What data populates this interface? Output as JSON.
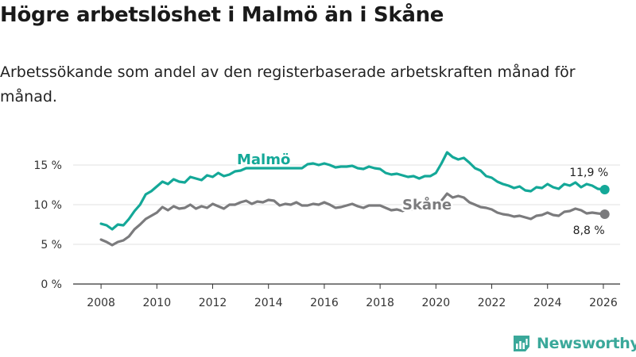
{
  "title": "Högre arbetslöshet i Malmö än i Skåne",
  "subtitle": "Arbetssökande som andel av den registerbaserade arbetskraften månad för månad.",
  "brand": "Newsworthy",
  "colors": {
    "malmo": "#14a898",
    "skane": "#7b7b7d",
    "grid": "#e2e2e2",
    "axis": "#333333"
  },
  "chart_data": {
    "type": "line",
    "title": "Högre arbetslöshet i Malmö än i Skåne",
    "xlabel": "",
    "ylabel": "",
    "xlim": [
      2007.0,
      2026.6
    ],
    "ylim": [
      0,
      16.8
    ],
    "y_ticks": [
      {
        "value": 0,
        "label": "0 %"
      },
      {
        "value": 5,
        "label": "5 %"
      },
      {
        "value": 10,
        "label": "10 %"
      },
      {
        "value": 15,
        "label": "15 %"
      }
    ],
    "x_ticks": [
      {
        "value": 2008,
        "label": "2008"
      },
      {
        "value": 2010,
        "label": "2010"
      },
      {
        "value": 2012,
        "label": "2012"
      },
      {
        "value": 2014,
        "label": "2014"
      },
      {
        "value": 2016,
        "label": "2016"
      },
      {
        "value": 2018,
        "label": "2018"
      },
      {
        "value": 2020,
        "label": "2020"
      },
      {
        "value": 2022,
        "label": "2022"
      },
      {
        "value": 2024,
        "label": "2024"
      },
      {
        "value": 2026,
        "label": "2026"
      }
    ],
    "series": [
      {
        "name": "Malmö",
        "label": "Malmö",
        "color": "#14a898",
        "end_label": "11,9 %",
        "points": [
          [
            2008.0,
            7.6
          ],
          [
            2008.2,
            7.4
          ],
          [
            2008.4,
            6.9
          ],
          [
            2008.6,
            7.5
          ],
          [
            2008.8,
            7.4
          ],
          [
            2009.0,
            8.2
          ],
          [
            2009.2,
            9.2
          ],
          [
            2009.4,
            10.0
          ],
          [
            2009.6,
            11.3
          ],
          [
            2009.8,
            11.7
          ],
          [
            2010.0,
            12.3
          ],
          [
            2010.2,
            12.9
          ],
          [
            2010.4,
            12.6
          ],
          [
            2010.6,
            13.2
          ],
          [
            2010.8,
            12.9
          ],
          [
            2011.0,
            12.8
          ],
          [
            2011.2,
            13.5
          ],
          [
            2011.4,
            13.3
          ],
          [
            2011.6,
            13.1
          ],
          [
            2011.8,
            13.7
          ],
          [
            2012.0,
            13.5
          ],
          [
            2012.2,
            14.0
          ],
          [
            2012.4,
            13.6
          ],
          [
            2012.6,
            13.8
          ],
          [
            2012.8,
            14.2
          ],
          [
            2013.0,
            14.3
          ],
          [
            2013.2,
            14.6
          ],
          [
            2015.2,
            14.6
          ],
          [
            2015.4,
            15.1
          ],
          [
            2015.6,
            15.2
          ],
          [
            2015.8,
            15.0
          ],
          [
            2016.0,
            15.2
          ],
          [
            2016.2,
            15.0
          ],
          [
            2016.4,
            14.7
          ],
          [
            2016.6,
            14.8
          ],
          [
            2016.8,
            14.8
          ],
          [
            2017.0,
            14.9
          ],
          [
            2017.2,
            14.6
          ],
          [
            2017.4,
            14.5
          ],
          [
            2017.6,
            14.8
          ],
          [
            2017.8,
            14.6
          ],
          [
            2018.0,
            14.5
          ],
          [
            2018.2,
            14.0
          ],
          [
            2018.4,
            13.8
          ],
          [
            2018.6,
            13.9
          ],
          [
            2018.8,
            13.7
          ],
          [
            2019.0,
            13.5
          ],
          [
            2019.2,
            13.6
          ],
          [
            2019.4,
            13.3
          ],
          [
            2019.6,
            13.6
          ],
          [
            2019.8,
            13.6
          ],
          [
            2020.0,
            14.0
          ],
          [
            2020.2,
            15.2
          ],
          [
            2020.4,
            16.6
          ],
          [
            2020.6,
            16.0
          ],
          [
            2020.8,
            15.7
          ],
          [
            2021.0,
            15.9
          ],
          [
            2021.2,
            15.3
          ],
          [
            2021.4,
            14.6
          ],
          [
            2021.6,
            14.3
          ],
          [
            2021.8,
            13.6
          ],
          [
            2022.0,
            13.4
          ],
          [
            2022.2,
            12.9
          ],
          [
            2022.4,
            12.6
          ],
          [
            2022.6,
            12.4
          ],
          [
            2022.8,
            12.1
          ],
          [
            2023.0,
            12.3
          ],
          [
            2023.2,
            11.8
          ],
          [
            2023.4,
            11.7
          ],
          [
            2023.6,
            12.2
          ],
          [
            2023.8,
            12.1
          ],
          [
            2024.0,
            12.6
          ],
          [
            2024.2,
            12.2
          ],
          [
            2024.4,
            12.0
          ],
          [
            2024.6,
            12.6
          ],
          [
            2024.8,
            12.4
          ],
          [
            2025.0,
            12.8
          ],
          [
            2025.2,
            12.2
          ],
          [
            2025.4,
            12.6
          ],
          [
            2025.6,
            12.4
          ],
          [
            2025.8,
            12.0
          ],
          [
            2026.05,
            11.9
          ]
        ]
      },
      {
        "name": "Skåne",
        "label": "Skåne",
        "color": "#7b7b7d",
        "end_label": "8,8 %",
        "points": [
          [
            2008.0,
            5.6
          ],
          [
            2008.2,
            5.3
          ],
          [
            2008.4,
            4.9
          ],
          [
            2008.6,
            5.3
          ],
          [
            2008.8,
            5.5
          ],
          [
            2009.0,
            6.0
          ],
          [
            2009.2,
            6.9
          ],
          [
            2009.4,
            7.5
          ],
          [
            2009.6,
            8.2
          ],
          [
            2009.8,
            8.6
          ],
          [
            2010.0,
            9.0
          ],
          [
            2010.2,
            9.7
          ],
          [
            2010.4,
            9.3
          ],
          [
            2010.6,
            9.8
          ],
          [
            2010.8,
            9.5
          ],
          [
            2011.0,
            9.6
          ],
          [
            2011.2,
            10.0
          ],
          [
            2011.4,
            9.5
          ],
          [
            2011.6,
            9.8
          ],
          [
            2011.8,
            9.6
          ],
          [
            2012.0,
            10.1
          ],
          [
            2012.2,
            9.8
          ],
          [
            2012.4,
            9.5
          ],
          [
            2012.6,
            10.0
          ],
          [
            2012.8,
            10.0
          ],
          [
            2013.0,
            10.3
          ],
          [
            2013.2,
            10.5
          ],
          [
            2013.4,
            10.1
          ],
          [
            2013.6,
            10.4
          ],
          [
            2013.8,
            10.3
          ],
          [
            2014.0,
            10.6
          ],
          [
            2014.2,
            10.5
          ],
          [
            2014.4,
            9.9
          ],
          [
            2014.6,
            10.1
          ],
          [
            2014.8,
            10.0
          ],
          [
            2015.0,
            10.3
          ],
          [
            2015.2,
            9.9
          ],
          [
            2015.4,
            9.9
          ],
          [
            2015.6,
            10.1
          ],
          [
            2015.8,
            10.0
          ],
          [
            2016.0,
            10.3
          ],
          [
            2016.2,
            10.0
          ],
          [
            2016.4,
            9.6
          ],
          [
            2016.6,
            9.7
          ],
          [
            2016.8,
            9.9
          ],
          [
            2017.0,
            10.1
          ],
          [
            2017.2,
            9.8
          ],
          [
            2017.4,
            9.6
          ],
          [
            2017.6,
            9.9
          ],
          [
            2017.8,
            9.9
          ],
          [
            2018.0,
            9.9
          ],
          [
            2018.2,
            9.6
          ],
          [
            2018.4,
            9.3
          ],
          [
            2018.6,
            9.4
          ],
          [
            2018.8,
            9.2
          ],
          [
            2019.0,
            9.5
          ],
          [
            2019.2,
            9.4
          ],
          [
            2019.4,
            9.5
          ],
          [
            2019.6,
            9.6
          ],
          [
            2019.8,
            9.4
          ],
          [
            2020.0,
            9.9
          ],
          [
            2020.2,
            10.5
          ],
          [
            2020.4,
            11.4
          ],
          [
            2020.6,
            10.9
          ],
          [
            2020.8,
            11.1
          ],
          [
            2021.0,
            10.9
          ],
          [
            2021.2,
            10.3
          ],
          [
            2021.4,
            10.0
          ],
          [
            2021.6,
            9.7
          ],
          [
            2021.8,
            9.6
          ],
          [
            2022.0,
            9.4
          ],
          [
            2022.2,
            9.0
          ],
          [
            2022.4,
            8.8
          ],
          [
            2022.6,
            8.7
          ],
          [
            2022.8,
            8.5
          ],
          [
            2023.0,
            8.6
          ],
          [
            2023.2,
            8.4
          ],
          [
            2023.4,
            8.2
          ],
          [
            2023.6,
            8.6
          ],
          [
            2023.8,
            8.7
          ],
          [
            2024.0,
            9.0
          ],
          [
            2024.2,
            8.7
          ],
          [
            2024.4,
            8.6
          ],
          [
            2024.6,
            9.1
          ],
          [
            2024.8,
            9.2
          ],
          [
            2025.0,
            9.5
          ],
          [
            2025.2,
            9.3
          ],
          [
            2025.4,
            8.9
          ],
          [
            2025.6,
            9.0
          ],
          [
            2025.8,
            8.9
          ],
          [
            2026.05,
            8.8
          ]
        ]
      }
    ]
  }
}
